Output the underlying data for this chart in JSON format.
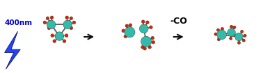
{
  "background_color": "#ffffff",
  "fig_width": 3.78,
  "fig_height": 1.05,
  "dpi": 100,
  "teal_color": "#33bbaa",
  "red_color": "#dd2200",
  "gray_color": "#aaaaaa",
  "dark_gray": "#777777",
  "lightning_color": "#2244ff",
  "arrow_color": "#111111",
  "label_400nm": "400nm",
  "label_400nm_color": "#0000cc",
  "label_400nm_fontsize": 7.5,
  "label_co": "-CO",
  "label_co_fontsize": 9,
  "label_co_color": "#000000"
}
